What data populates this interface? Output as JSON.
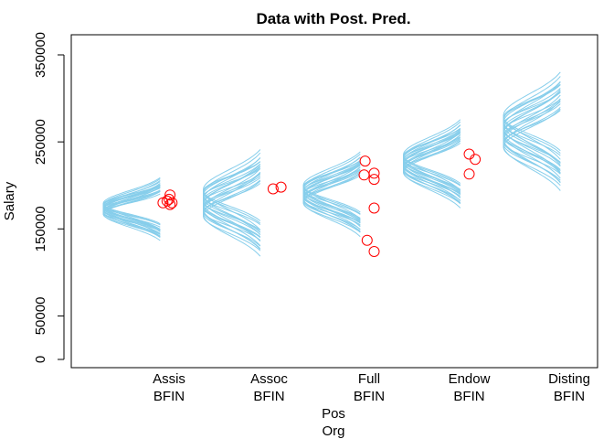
{
  "chart_data": {
    "type": "scatter",
    "title": "Data with Post. Pred.",
    "ylabel": "Salary",
    "xlabel_lines": [
      "Pos",
      "Org"
    ],
    "ylim": [
      0,
      380000
    ],
    "yticks": [
      0,
      50000,
      150000,
      250000,
      350000
    ],
    "ytick_labels": [
      "0",
      "50000",
      "150000",
      "250000",
      "350000"
    ],
    "categories": [
      {
        "line1": "Assis",
        "line2": "BFIN"
      },
      {
        "line1": "Assoc",
        "line2": "BFIN"
      },
      {
        "line1": "Full",
        "line2": "BFIN"
      },
      {
        "line1": "Endow",
        "line2": "BFIN"
      },
      {
        "line1": "Disting",
        "line2": "BFIN"
      }
    ],
    "data_points": [
      {
        "category": 0,
        "offset": -0.06,
        "y": 180000
      },
      {
        "category": 0,
        "offset": -0.02,
        "y": 182000
      },
      {
        "category": 0,
        "offset": 0.01,
        "y": 178000
      },
      {
        "category": 0,
        "offset": 0.03,
        "y": 180000
      },
      {
        "category": 0,
        "offset": 0.0,
        "y": 184000
      },
      {
        "category": 0,
        "offset": 0.01,
        "y": 189000
      },
      {
        "category": 1,
        "offset": 0.04,
        "y": 196000
      },
      {
        "category": 1,
        "offset": 0.12,
        "y": 198000
      },
      {
        "category": 2,
        "offset": -0.04,
        "y": 228000
      },
      {
        "category": 2,
        "offset": -0.05,
        "y": 212000
      },
      {
        "category": 2,
        "offset": 0.05,
        "y": 214000
      },
      {
        "category": 2,
        "offset": 0.05,
        "y": 207000
      },
      {
        "category": 2,
        "offset": 0.05,
        "y": 174000
      },
      {
        "category": 2,
        "offset": -0.02,
        "y": 137000
      },
      {
        "category": 2,
        "offset": 0.05,
        "y": 124000
      },
      {
        "category": 3,
        "offset": 0.0,
        "y": 236000
      },
      {
        "category": 3,
        "offset": 0.06,
        "y": 230000
      },
      {
        "category": 3,
        "offset": 0.0,
        "y": 213000
      }
    ],
    "posterior_predictive": [
      {
        "category": 0,
        "center": 173000,
        "sd": 13000,
        "sd_jitter": 2500,
        "center_jitter": 6000,
        "curves": 20
      },
      {
        "category": 1,
        "center": 180000,
        "sd": 20000,
        "sd_jitter": 4000,
        "center_jitter": 15000,
        "curves": 20
      },
      {
        "category": 2,
        "center": 190000,
        "sd": 17000,
        "sd_jitter": 3000,
        "center_jitter": 10000,
        "curves": 20
      },
      {
        "category": 3,
        "center": 225000,
        "sd": 18000,
        "sd_jitter": 3000,
        "center_jitter": 10000,
        "curves": 20
      },
      {
        "category": 4,
        "center": 262000,
        "sd": 22000,
        "sd_jitter": 4000,
        "center_jitter": 18000,
        "curves": 20
      }
    ],
    "colors": {
      "curves": "#87ceeb",
      "points": "#ff0000",
      "axes": "#000000"
    },
    "grid": false,
    "legend": "none"
  }
}
